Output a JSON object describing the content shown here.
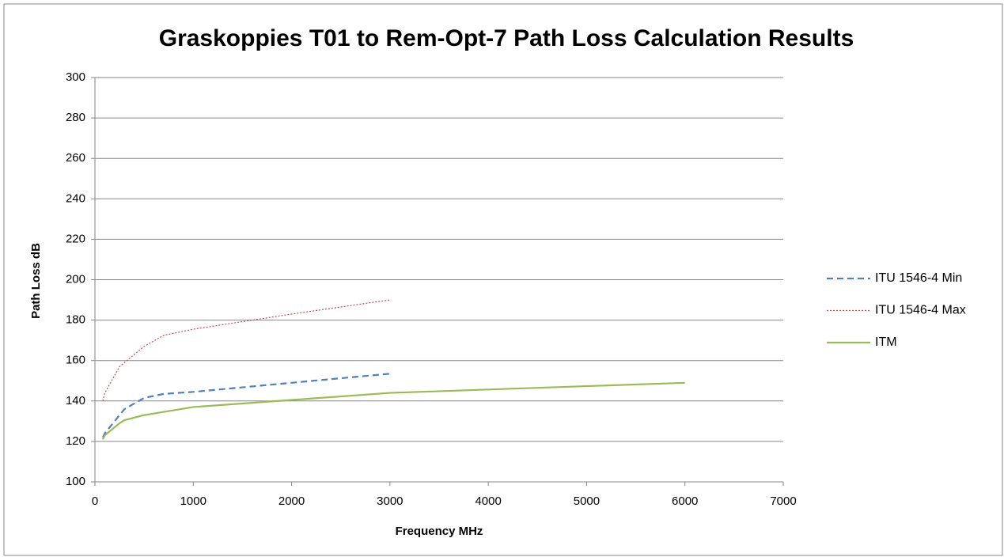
{
  "chart_data": {
    "type": "line",
    "title": "Graskoppies T01 to Rem-Opt-7 Path Loss Calculation Results",
    "x_label": "Frequency MHz",
    "y_label": "Path Loss dB",
    "xlim": [
      0,
      7000
    ],
    "xticks": [
      0,
      1000,
      2000,
      3000,
      4000,
      5000,
      6000,
      7000
    ],
    "ylim": [
      100,
      300
    ],
    "yticks": [
      100,
      120,
      140,
      160,
      180,
      200,
      220,
      240,
      260,
      280,
      300
    ],
    "grid": true,
    "legend": "right",
    "series": [
      {
        "name": "ITU 1546-4 Min",
        "color": "#4f81bd",
        "dash": "dashed",
        "x": [
          80,
          100,
          300,
          500,
          700,
          1000,
          2000,
          3000
        ],
        "values": [
          122,
          124,
          136,
          141.5,
          143.5,
          144.5,
          149,
          153.5
        ]
      },
      {
        "name": "ITU 1546-4 Max",
        "color": "#c0504d",
        "dash": "dotted",
        "x": [
          80,
          100,
          250,
          500,
          700,
          1000,
          2000,
          3000
        ],
        "values": [
          140,
          144,
          157,
          167,
          172.5,
          175.5,
          183,
          190
        ]
      },
      {
        "name": "ITM",
        "color": "#9bbb59",
        "dash": "solid",
        "x": [
          80,
          100,
          250,
          300,
          500,
          1000,
          2000,
          3000,
          6000
        ],
        "values": [
          121,
          123,
          129,
          130.5,
          133,
          137,
          140.5,
          144,
          149
        ]
      }
    ]
  }
}
